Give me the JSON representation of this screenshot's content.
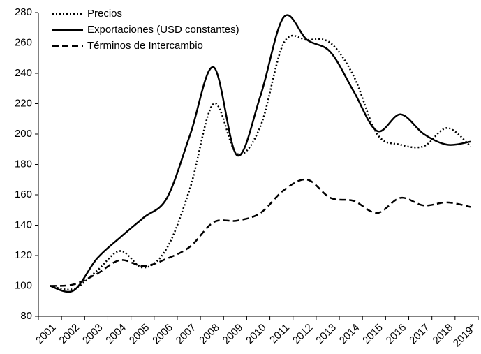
{
  "chart_data": {
    "type": "line",
    "categories": [
      "2001",
      "2002",
      "2003",
      "2004",
      "2005",
      "2006",
      "2007",
      "2008",
      "2009",
      "2010",
      "2011",
      "2012",
      "2013",
      "2014",
      "2015",
      "2016",
      "2017",
      "2018",
      "2019*"
    ],
    "series": [
      {
        "name": "Precios",
        "color": "#000000",
        "dash": "dotted",
        "values": [
          100,
          98,
          110,
          123,
          112,
          125,
          165,
          220,
          187,
          205,
          260,
          262,
          260,
          238,
          200,
          193,
          192,
          204,
          192
        ]
      },
      {
        "name": "Exportaciones (USD constantes)",
        "color": "#000000",
        "dash": "solid",
        "values": [
          100,
          97,
          118,
          132,
          145,
          158,
          200,
          244,
          186,
          225,
          277,
          262,
          254,
          228,
          202,
          213,
          200,
          193,
          195
        ]
      },
      {
        "name": "Términos de Intercambio",
        "color": "#000000",
        "dash": "dashed",
        "values": [
          100,
          101,
          108,
          117,
          113,
          118,
          126,
          142,
          143,
          148,
          163,
          170,
          158,
          156,
          148,
          158,
          153,
          155,
          152
        ]
      }
    ],
    "ylim": [
      80,
      280
    ],
    "yticks": [
      80,
      100,
      120,
      140,
      160,
      180,
      200,
      220,
      240,
      260,
      280
    ],
    "grid": false,
    "legend": "top-left"
  }
}
